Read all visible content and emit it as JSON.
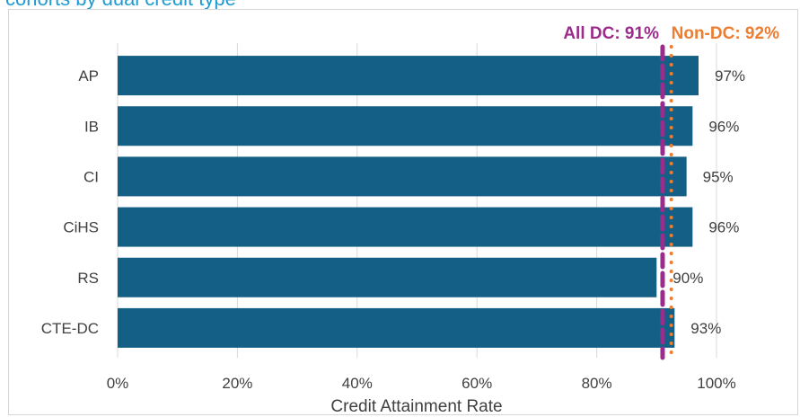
{
  "page": {
    "title": "cohorts by dual credit type"
  },
  "chart_data": {
    "type": "bar",
    "orientation": "horizontal",
    "title": "cohorts by dual credit type",
    "xlabel": "Credit Attainment Rate",
    "ylabel": "",
    "categories": [
      "AP",
      "IB",
      "CI",
      "CiHS",
      "RS",
      "CTE-DC"
    ],
    "values": [
      0.97,
      0.96,
      0.95,
      0.96,
      0.9,
      0.93
    ],
    "value_labels": [
      "97%",
      "96%",
      "95%",
      "96%",
      "90%",
      "93%"
    ],
    "xlim": [
      0,
      1
    ],
    "xticks": [
      0,
      0.2,
      0.4,
      0.6,
      0.8,
      1.0
    ],
    "xtick_labels": [
      "0%",
      "20%",
      "40%",
      "60%",
      "80%",
      "100%"
    ],
    "grid": "vertical",
    "bar_color": "#135f85",
    "reference_lines": [
      {
        "label": "All DC: 91%",
        "value": 0.91,
        "color": "#9b2c8c",
        "style": "dashed"
      },
      {
        "label": "Non-DC: 92%",
        "value": 0.92,
        "color": "#ed7d31",
        "style": "dotted"
      }
    ]
  }
}
